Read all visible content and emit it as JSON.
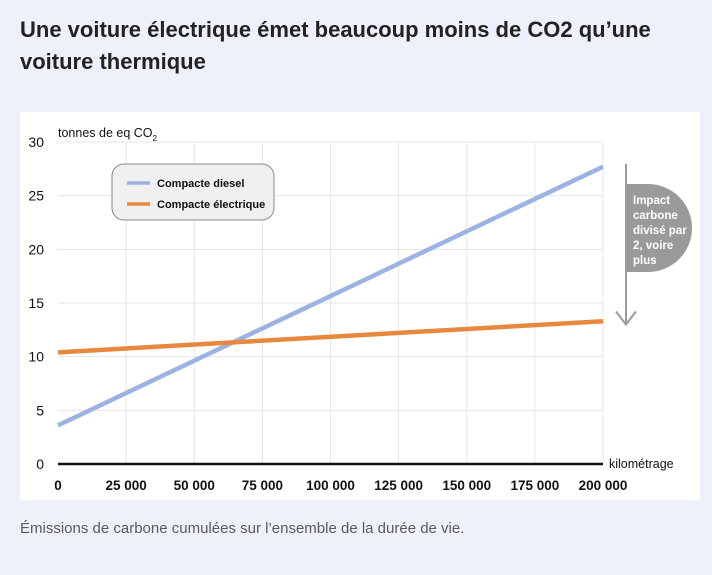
{
  "page": {
    "title": "Une voiture électrique émet beaucoup moins de CO2 qu’une voiture thermique",
    "caption": "Émissions de carbone cumulées sur l’ensemble de la durée de vie."
  },
  "chart_data": {
    "type": "line",
    "ylabel": "tonnes de eq CO",
    "ylabel_subscript": "2",
    "xlabel": "kilométrage",
    "xlim": [
      0,
      200000
    ],
    "ylim": [
      0,
      30
    ],
    "x_ticks": [
      0,
      25000,
      50000,
      75000,
      100000,
      125000,
      150000,
      175000,
      200000
    ],
    "x_tick_labels": [
      "0",
      "25 000",
      "50 000",
      "75 000",
      "100 000",
      "125 000",
      "150 000",
      "175 000",
      "200 000"
    ],
    "y_ticks": [
      0,
      5,
      10,
      15,
      20,
      25,
      30
    ],
    "y_tick_labels": [
      "0",
      "5",
      "10",
      "15",
      "20",
      "25",
      "30"
    ],
    "grid": true,
    "legend_position": "top-left",
    "series": [
      {
        "name": "Compacte diesel",
        "color": "#9ab3e2",
        "x": [
          0,
          200000
        ],
        "y": [
          3.6,
          27.7
        ]
      },
      {
        "name": "Compacte électrique",
        "color": "#e8883f",
        "x": [
          0,
          200000
        ],
        "y": [
          10.4,
          13.3
        ]
      }
    ],
    "annotation": {
      "text_lines": [
        "Impact",
        "carbone",
        "divisé par",
        "2, voire",
        "plus"
      ],
      "arrow_from_y": 27.5,
      "arrow_to_y": 13.0,
      "bubble_color": "#9a9a9a",
      "arrow_color": "#9a9a9a"
    }
  }
}
